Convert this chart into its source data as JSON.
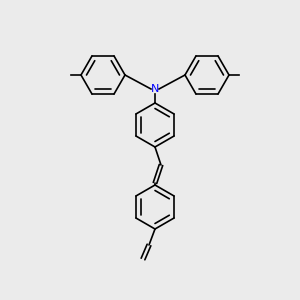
{
  "bg_color": "#ebebeb",
  "line_color": "#000000",
  "N_color": "#0000ff",
  "lw": 1.2,
  "lw2": 1.2
}
